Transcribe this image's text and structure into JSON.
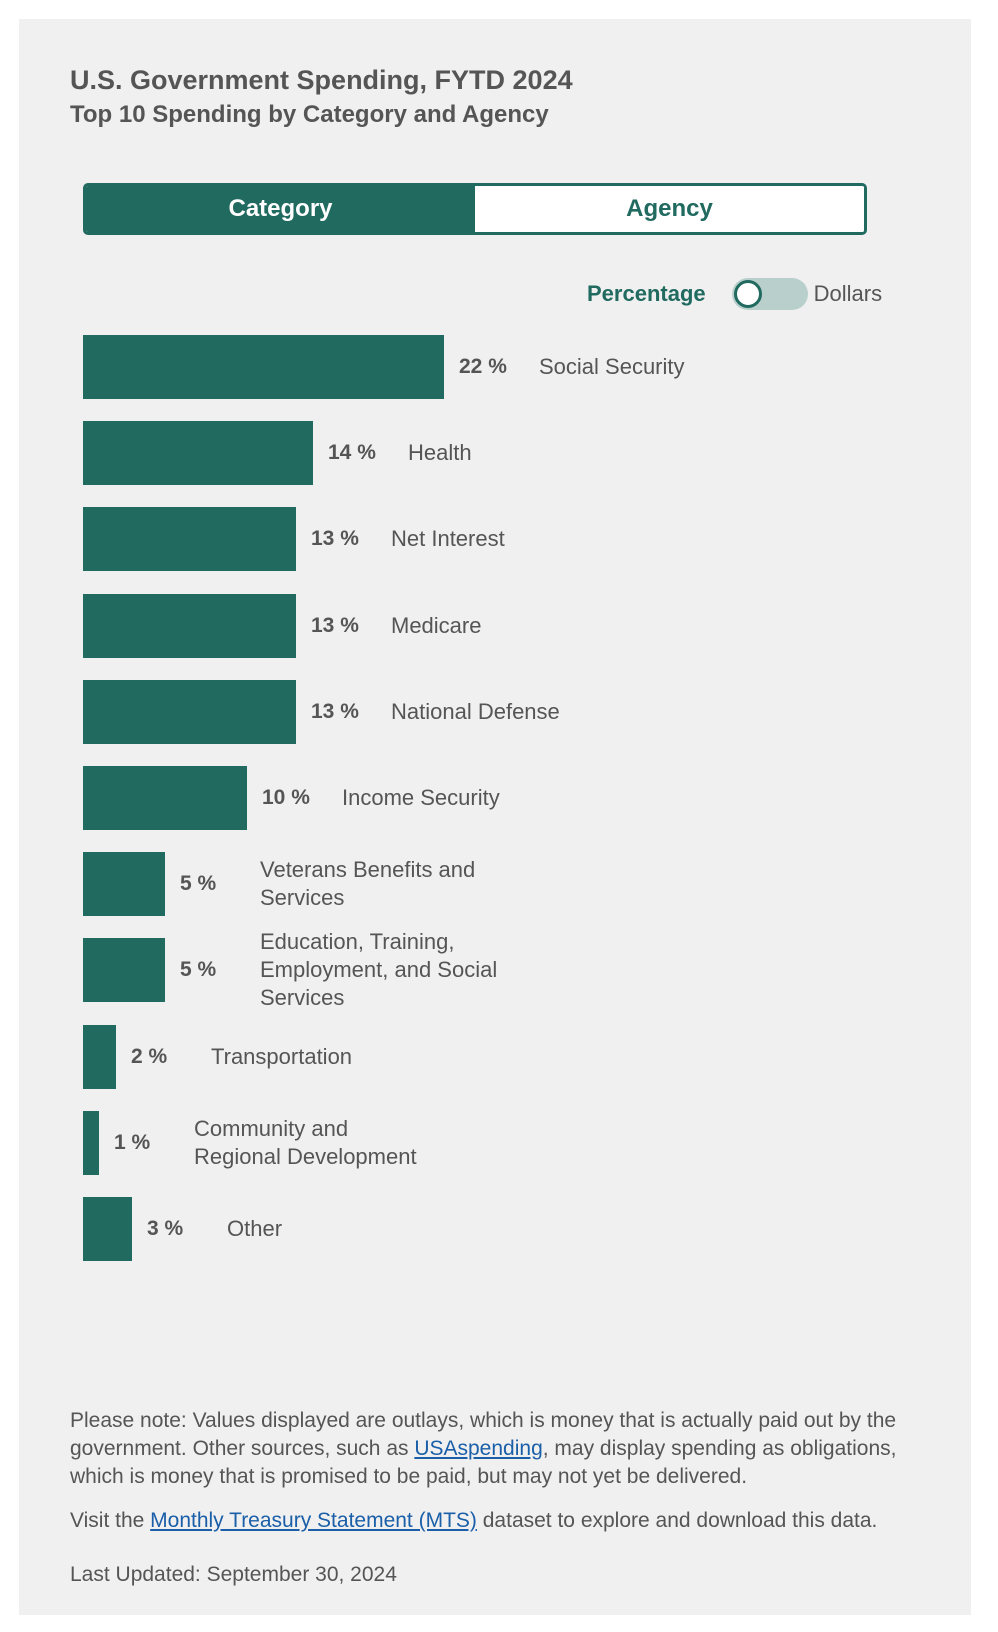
{
  "header": {
    "title": "U.S. Government Spending, FYTD 2024",
    "subtitle": "Top 10 Spending by Category and Agency"
  },
  "tabs": [
    {
      "label": "Category",
      "active": true
    },
    {
      "label": "Agency",
      "active": false
    }
  ],
  "toggle": {
    "left_label": "Percentage",
    "right_label": "Dollars",
    "selected": "Percentage"
  },
  "colors": {
    "accent": "#216a60",
    "card_bg": "#f0f0f0",
    "text": "#555555",
    "link": "#1a5fa8",
    "toggle_track": "#b8cfcb"
  },
  "chart_data": {
    "type": "bar",
    "orientation": "horizontal",
    "title": "U.S. Government Spending, FYTD 2024",
    "subtitle": "Top 10 Spending by Category and Agency",
    "categories": [
      "Social Security",
      "Health",
      "Net Interest",
      "Medicare",
      "National Defense",
      "Income Security",
      "Veterans Benefits and Services",
      "Education, Training, Employment, and Social Services",
      "Transportation",
      "Community and Regional Development",
      "Other"
    ],
    "values": [
      22,
      14,
      13,
      13,
      13,
      10,
      5,
      5,
      2,
      1,
      3
    ],
    "value_labels": [
      "22 %",
      "14 %",
      "13 %",
      "13 %",
      "13 %",
      "10 %",
      "5 %",
      "5 %",
      "2 %",
      "1 %",
      "3 %"
    ],
    "unit": "%",
    "grid": false,
    "legend": "none"
  },
  "footer": {
    "note_prefix": "Please note: Values displayed are outlays, which is money that is actually paid out by the government. Other sources, such as ",
    "note_link": "USAspending",
    "note_suffix": ", may display spending as obligations, which is money that is promised to be paid, but may not yet be delivered.",
    "visit_prefix": "Visit the ",
    "visit_link": "Monthly Treasury Statement (MTS)",
    "visit_suffix": " dataset to explore and download this data.",
    "last_updated": "Last Updated: September 30, 2024"
  }
}
